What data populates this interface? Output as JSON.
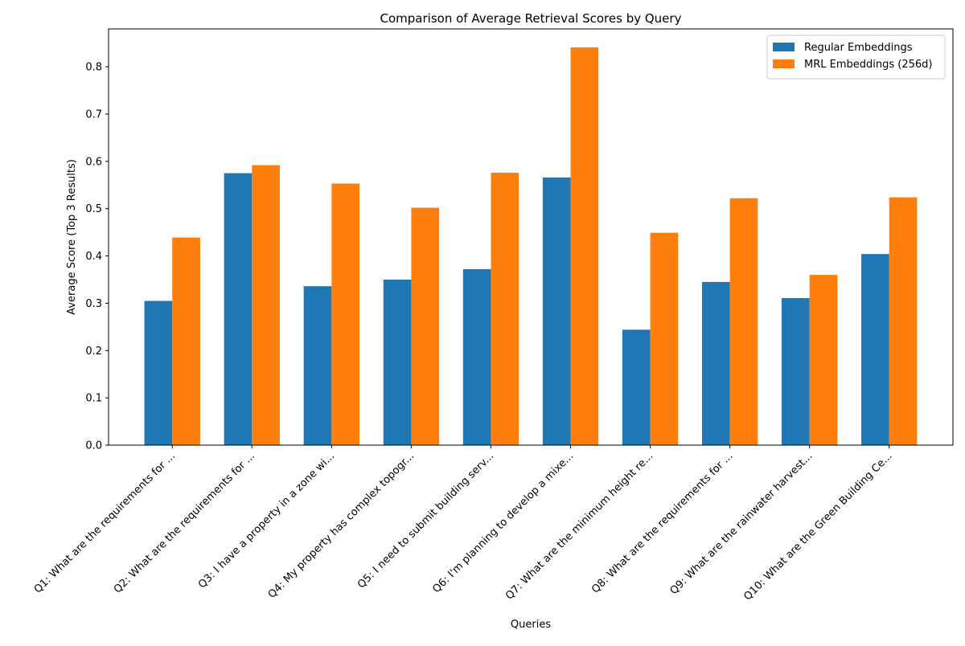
{
  "chart_data": {
    "type": "bar",
    "title": "Comparison of Average Retrieval Scores by Query",
    "xlabel": "Queries",
    "ylabel": "Average Score (Top 3 Results)",
    "ylim": [
      0,
      0.88
    ],
    "yticks": [
      0.0,
      0.1,
      0.2,
      0.3,
      0.4,
      0.5,
      0.6,
      0.7,
      0.8
    ],
    "ytick_labels": [
      "0.0",
      "0.1",
      "0.2",
      "0.3",
      "0.4",
      "0.5",
      "0.6",
      "0.7",
      "0.8"
    ],
    "grid": false,
    "legend_position": "top-right",
    "categories": [
      "Q1: What are the requirements for ...",
      "Q2: What are the requirements for ...",
      "Q3: I have a property in a zone wi...",
      "Q4: My property has complex topogr...",
      "Q5: I need to submit building serv...",
      "Q6: I'm planning to develop a mixe...",
      "Q7: What are the minimum height re...",
      "Q8: What are the requirements for ...",
      "Q9: What are the rainwater harvest...",
      "Q10: What are the Green Building Ce..."
    ],
    "series": [
      {
        "name": "Regular Embeddings",
        "color": "#1f77b4",
        "values": [
          0.305,
          0.575,
          0.336,
          0.35,
          0.372,
          0.566,
          0.244,
          0.345,
          0.311,
          0.404
        ]
      },
      {
        "name": "MRL Embeddings (256d)",
        "color": "#ff7f0e",
        "values": [
          0.439,
          0.592,
          0.553,
          0.502,
          0.576,
          0.841,
          0.449,
          0.522,
          0.36,
          0.524
        ]
      }
    ]
  }
}
